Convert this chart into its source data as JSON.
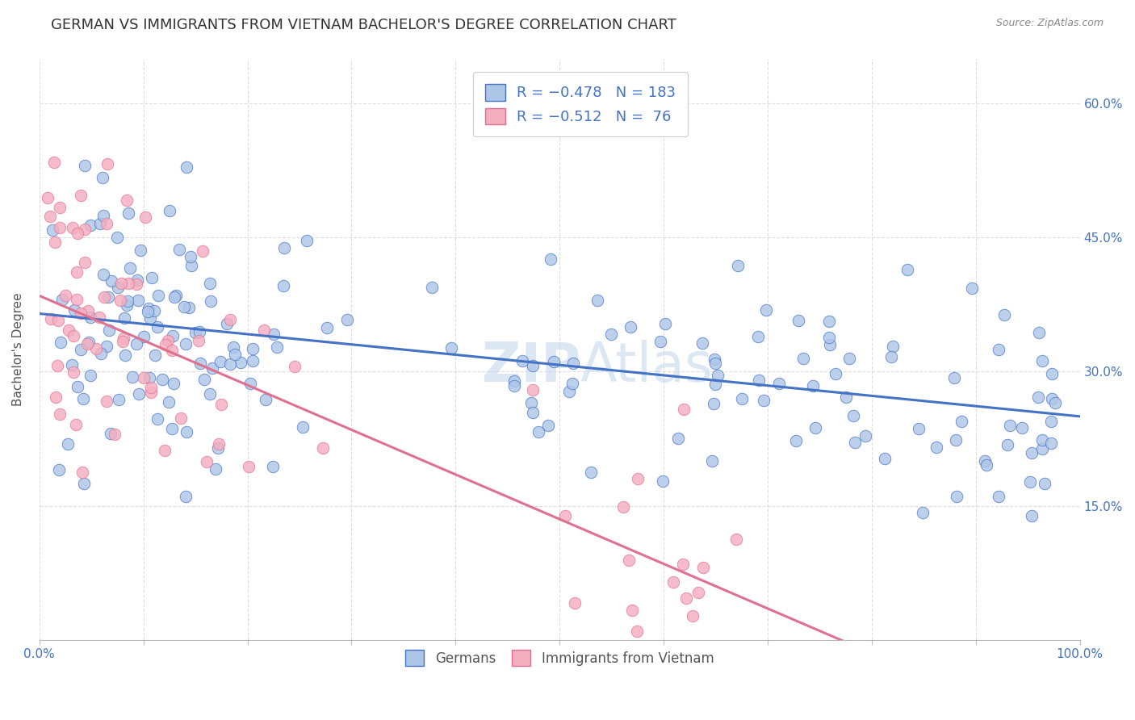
{
  "title": "GERMAN VS IMMIGRANTS FROM VIETNAM BACHELOR'S DEGREE CORRELATION CHART",
  "source": "Source: ZipAtlas.com",
  "ylabel": "Bachelor's Degree",
  "xlim": [
    0.0,
    1.0
  ],
  "ylim": [
    0.0,
    0.65
  ],
  "y_tick_labels": [
    "15.0%",
    "30.0%",
    "45.0%",
    "60.0%"
  ],
  "y_tick_positions": [
    0.15,
    0.3,
    0.45,
    0.6
  ],
  "blue_color": "#adc6e8",
  "pink_color": "#f5aec0",
  "blue_line_color": "#4472c4",
  "pink_line_color": "#e07090",
  "legend_bottom_blue": "Germans",
  "legend_bottom_pink": "Immigrants from Vietnam",
  "blue_intercept": 0.365,
  "blue_slope": -0.115,
  "pink_intercept": 0.385,
  "pink_slope": -0.5,
  "watermark": "ZIPAtlas",
  "title_fontsize": 13,
  "axis_label_fontsize": 11,
  "tick_fontsize": 11,
  "legend_fontsize": 12,
  "background_color": "#ffffff",
  "grid_color": "#d0d0d0"
}
